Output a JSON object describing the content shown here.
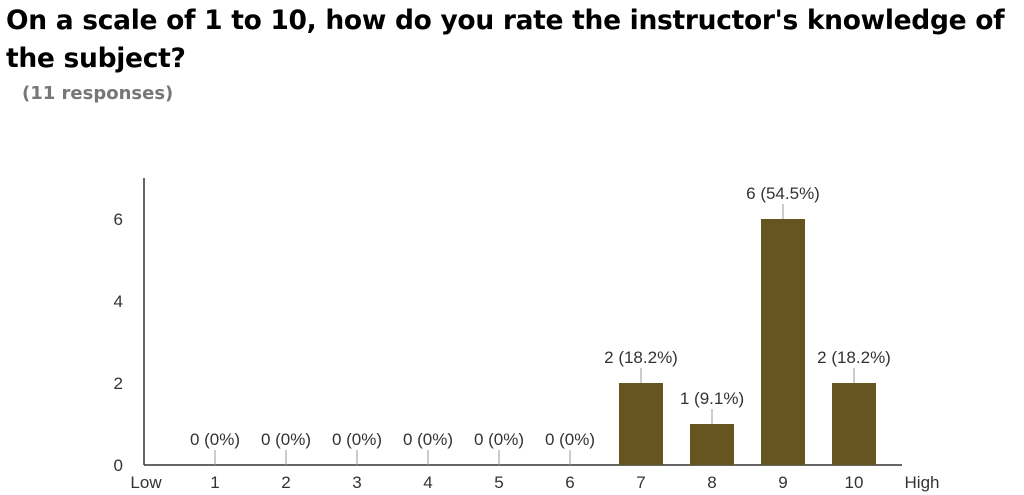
{
  "question": {
    "title": "On a scale of 1 to 10, how do you rate the instructor's knowledge of the subject?",
    "responses": "(11 responses)"
  },
  "chart_data": {
    "type": "bar",
    "categories": [
      "1",
      "2",
      "3",
      "4",
      "5",
      "6",
      "7",
      "8",
      "9",
      "10"
    ],
    "values": [
      0,
      0,
      0,
      0,
      0,
      0,
      2,
      1,
      6,
      2
    ],
    "data_labels": [
      "0 (0%)",
      "0 (0%)",
      "0 (0%)",
      "0 (0%)",
      "0 (0%)",
      "0 (0%)",
      "2 (18.2%)",
      "1 (9.1%)",
      "6 (54.5%)",
      "2 (18.2%)"
    ],
    "scale_low_label": "Low",
    "scale_high_label": "High",
    "y_ticks": [
      0,
      2,
      4,
      6
    ],
    "ylim": [
      0,
      7
    ],
    "grid": false,
    "legend": "none",
    "bar_color": "#665520"
  }
}
